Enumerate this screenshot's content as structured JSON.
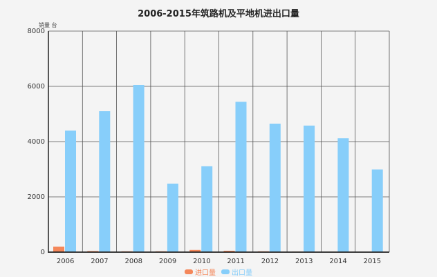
{
  "chart_data": {
    "type": "bar",
    "title": "2006-2015年筑路机及平地机进出口量",
    "ylabel": "销量 台",
    "ylim": [
      0,
      8000
    ],
    "yticks": [
      0,
      2000,
      4000,
      6000,
      8000
    ],
    "categories": [
      "2006",
      "2007",
      "2008",
      "2009",
      "2010",
      "2011",
      "2012",
      "2013",
      "2014",
      "2015"
    ],
    "series": [
      {
        "name": "进口量",
        "color": "#f4875a",
        "values": [
          200,
          40,
          30,
          30,
          80,
          50,
          30,
          20,
          15,
          10
        ]
      },
      {
        "name": "出口量",
        "color": "#87cefa",
        "values": [
          4400,
          5100,
          6050,
          2480,
          3110,
          5440,
          4650,
          4580,
          4120,
          2990
        ]
      }
    ],
    "grid": true,
    "legend_position": "bottom"
  }
}
